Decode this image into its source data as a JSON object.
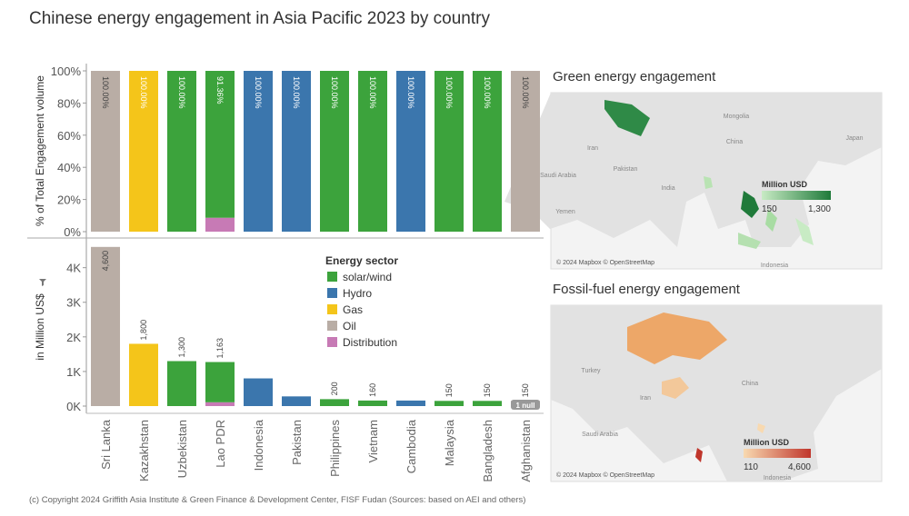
{
  "title": "Chinese energy engagement in Asia Pacific 2023 by country",
  "footer": "(c) Copyright 2024 Griffith Asia Institute & Green Finance & Development Center, FISF Fudan (Sources: based on AEI and others)",
  "legend": {
    "title": "Energy sector"
  },
  "chart_data": [
    {
      "type": "bar",
      "stacked": true,
      "ylabel": "% of Total Engagement volume",
      "categories": [
        "Sri Lanka",
        "Kazakhstan",
        "Uzbekistan",
        "Lao PDR",
        "Indonesia",
        "Pakistan",
        "Philippines",
        "Vietnam",
        "Cambodia",
        "Malaysia",
        "Bangladesh",
        "Afghanistan"
      ],
      "series": [
        {
          "name": "solar/wind",
          "color": "#3ca33c",
          "values": [
            null,
            null,
            100,
            91.36,
            null,
            null,
            100,
            100,
            null,
            100,
            100,
            null
          ],
          "value_labels": [
            null,
            null,
            "100.00%",
            "91.36%",
            null,
            null,
            "100.00%",
            "100.00%",
            null,
            "100.00%",
            "100.00%",
            null
          ]
        },
        {
          "name": "Hydro",
          "color": "#3b76ad",
          "values": [
            null,
            null,
            null,
            null,
            100,
            100,
            null,
            null,
            100,
            null,
            null,
            null
          ],
          "value_labels": [
            null,
            null,
            null,
            null,
            "100.00%",
            "100.00%",
            null,
            null,
            "100.00%",
            null,
            null,
            null
          ]
        },
        {
          "name": "Gas",
          "color": "#f4c51a",
          "values": [
            null,
            100,
            null,
            null,
            null,
            null,
            null,
            null,
            null,
            null,
            null,
            null
          ],
          "value_labels": [
            null,
            "100.00%",
            null,
            null,
            null,
            null,
            null,
            null,
            null,
            null,
            null,
            null
          ]
        },
        {
          "name": "Oil",
          "color": "#b9ada5",
          "values": [
            100,
            null,
            null,
            null,
            null,
            null,
            null,
            null,
            null,
            null,
            null,
            100
          ],
          "value_labels": [
            "100.00%",
            null,
            null,
            null,
            null,
            null,
            null,
            null,
            null,
            null,
            null,
            "100.00%"
          ]
        },
        {
          "name": "Distribution",
          "color": "#c77ab5",
          "values": [
            null,
            null,
            null,
            8.64,
            null,
            null,
            null,
            null,
            null,
            null,
            null,
            null
          ]
        }
      ],
      "ylim": [
        0,
        100
      ],
      "yticks": [
        {
          "value": 0,
          "label": "0%"
        },
        {
          "value": 20,
          "label": "20%"
        },
        {
          "value": 40,
          "label": "40%"
        },
        {
          "value": 60,
          "label": "60%"
        },
        {
          "value": 80,
          "label": "80%"
        },
        {
          "value": 100,
          "label": "100%"
        }
      ]
    },
    {
      "type": "bar",
      "stacked": true,
      "ylabel": "in Million US$",
      "series": [
        {
          "name": "solar/wind",
          "color": "#3ca33c",
          "values": [
            null,
            null,
            1300,
            1163,
            null,
            null,
            200,
            160,
            null,
            150,
            150,
            null
          ],
          "value_labels": [
            null,
            null,
            "1,300",
            "1,163",
            null,
            null,
            "200",
            "160",
            null,
            "150",
            "150",
            null
          ]
        },
        {
          "name": "Hydro",
          "color": "#3b76ad",
          "values": [
            null,
            null,
            null,
            null,
            800,
            280,
            null,
            null,
            160,
            null,
            null,
            null
          ]
        },
        {
          "name": "Gas",
          "color": "#f4c51a",
          "values": [
            null,
            1800,
            null,
            null,
            null,
            null,
            null,
            null,
            null,
            null,
            null,
            null
          ],
          "value_labels": [
            null,
            "1,800",
            null,
            null,
            null,
            null,
            null,
            null,
            null,
            null,
            null,
            null
          ]
        },
        {
          "name": "Oil",
          "color": "#b9ada5",
          "values": [
            4600,
            null,
            null,
            null,
            null,
            null,
            null,
            null,
            null,
            null,
            null,
            150
          ],
          "value_labels": [
            "4,600",
            null,
            null,
            null,
            null,
            null,
            null,
            null,
            null,
            null,
            null,
            "150"
          ]
        },
        {
          "name": "Distribution",
          "color": "#c77ab5",
          "values": [
            null,
            null,
            null,
            110,
            null,
            null,
            null,
            null,
            null,
            null,
            null,
            null
          ]
        }
      ],
      "ylim": [
        0,
        4700
      ],
      "yticks": [
        {
          "value": 0,
          "label": "0K"
        },
        {
          "value": 1000,
          "label": "1K"
        },
        {
          "value": 2000,
          "label": "2K"
        },
        {
          "value": 3000,
          "label": "3K"
        },
        {
          "value": 4000,
          "label": "4K"
        }
      ],
      "annotations": [
        "1 null"
      ]
    }
  ],
  "maps": [
    {
      "title": "Green energy engagement",
      "attribution": "© 2024 Mapbox © OpenStreetMap",
      "labels": [
        "Mongolia",
        "China",
        "Japan",
        "Iran",
        "Pakistan",
        "Saudi Arabia",
        "India",
        "Yemen",
        "Indonesia"
      ],
      "legend": {
        "title": "Million USD",
        "colors": [
          "#c8ebc4",
          "#1f7a3a"
        ],
        "range": [
          150,
          1300
        ],
        "ticks": [
          150,
          {
            "value": 1300,
            "label": "1,300"
          }
        ]
      }
    },
    {
      "title": "Fossil-fuel energy engagement",
      "attribution": "© 2024 Mapbox © OpenStreetMap",
      "labels": [
        "Turkey",
        "Iran",
        "Saudi Arabia",
        "China",
        "Indonesia"
      ],
      "legend": {
        "title": "Million USD",
        "colors": [
          "#f8d9b0",
          "#c0362c"
        ],
        "range": [
          110,
          4600
        ],
        "ticks": [
          110,
          {
            "value": 4600,
            "label": "4,600"
          }
        ]
      }
    }
  ]
}
